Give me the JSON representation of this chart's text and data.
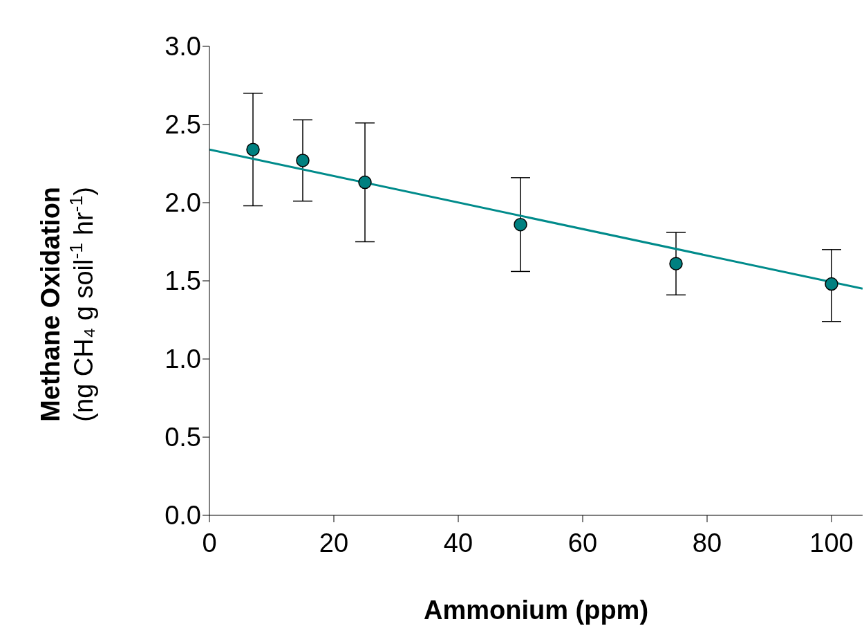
{
  "chart_data": {
    "type": "scatter",
    "xlabel": "Ammonium (ppm)",
    "ylabel": "Methane Oxidation\n(ng CH₄ g soil$^{-1}$ hr$^{-1}$)",
    "xlim": [
      0,
      105
    ],
    "xticks": [
      0,
      20,
      40,
      60,
      80,
      100
    ],
    "ylim": [
      0,
      3
    ],
    "yticks": [
      {
        "value": 0,
        "label": "0.0"
      },
      {
        "value": 0.5,
        "label": "0.5"
      },
      {
        "value": 1,
        "label": "1.0"
      },
      {
        "value": 1.5,
        "label": "1.5"
      },
      {
        "value": 2,
        "label": "2.0"
      },
      {
        "value": 2.5,
        "label": "2.5"
      },
      {
        "value": 3,
        "label": "3.0"
      }
    ],
    "grid": false,
    "series": [
      {
        "marker": "circle",
        "color": "#008080",
        "x": [
          7,
          15,
          25,
          50,
          75,
          100
        ],
        "values": [
          2.34,
          2.27,
          2.13,
          1.86,
          1.61,
          1.48
        ],
        "errors": [
          [
            1.98,
            2.7
          ],
          [
            2.01,
            2.53
          ],
          [
            1.75,
            2.51
          ],
          [
            1.56,
            2.16
          ],
          [
            1.41,
            1.81
          ],
          [
            1.24,
            1.7
          ]
        ]
      },
      {
        "type": "line",
        "marker": "none",
        "color": "#008b8b",
        "x": [
          0,
          105
        ],
        "values": [
          2.34,
          1.45
        ]
      }
    ]
  }
}
